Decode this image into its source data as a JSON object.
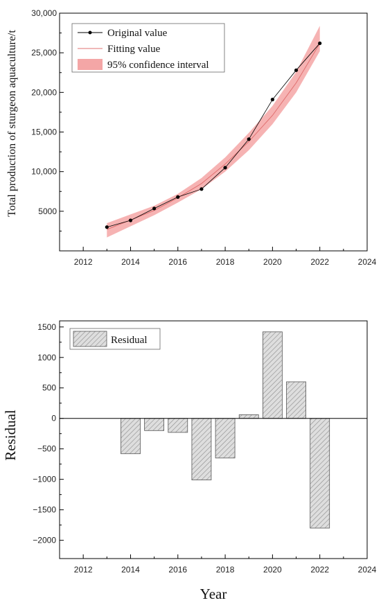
{
  "chart_data": [
    {
      "type": "line",
      "ylabel": "Total production of sturgeon aquaculture/t",
      "xlim": [
        2011,
        2024
      ],
      "ylim": [
        0,
        30000
      ],
      "x_ticks": [
        "2012",
        "2014",
        "2016",
        "2018",
        "2020",
        "2022",
        "2024"
      ],
      "y_ticks": [
        "5000",
        "10,000",
        "15,000",
        "20,000",
        "25,000",
        "30,000"
      ],
      "legend_position": "top-left",
      "series": [
        {
          "name": "Original value",
          "x": [
            2013,
            2014,
            2015,
            2016,
            2017,
            2018,
            2019,
            2020,
            2021,
            2022
          ],
          "values": [
            3000,
            3850,
            5350,
            6800,
            7800,
            10500,
            14100,
            19100,
            22800,
            26200
          ]
        },
        {
          "name": "Fitting value",
          "x": [
            2013,
            2014,
            2015,
            2016,
            2017,
            2018,
            2019,
            2020,
            2021,
            2022
          ],
          "values": [
            2700,
            3900,
            5100,
            6700,
            8500,
            10950,
            13800,
            17100,
            21200,
            26200
          ]
        },
        {
          "name": "95% confidence interval",
          "x": [
            2013,
            2014,
            2015,
            2016,
            2017,
            2018,
            2019,
            2020,
            2021,
            2022
          ],
          "lower": [
            1700,
            3100,
            4500,
            6100,
            7800,
            10000,
            12700,
            16000,
            20000,
            25200
          ],
          "upper": [
            3500,
            4600,
            5700,
            7200,
            9200,
            11800,
            14900,
            18300,
            22600,
            28400
          ]
        }
      ],
      "colors": {
        "original": "#000000",
        "fitting": "#e07070",
        "band": "#f4a6a6"
      }
    },
    {
      "type": "bar",
      "xlabel": "Year",
      "ylabel": "Residual",
      "xlim": [
        2011,
        2024
      ],
      "ylim": [
        -2300,
        1600
      ],
      "x_ticks": [
        "2012",
        "2014",
        "2016",
        "2018",
        "2020",
        "2022",
        "2024"
      ],
      "y_ticks": [
        "−2000",
        "−1500",
        "−1000",
        "−500",
        "0",
        "500",
        "1000",
        "1500"
      ],
      "legend_position": "top-left",
      "series": [
        {
          "name": "Residual",
          "x": [
            2014,
            2015,
            2016,
            2017,
            2018,
            2019,
            2020,
            2021,
            2022
          ],
          "values": [
            -580,
            -200,
            -230,
            -1010,
            -650,
            60,
            1420,
            600,
            -1800
          ]
        }
      ],
      "colors": {
        "bar_fill": "#d9d9d9",
        "bar_hatch": "#8c8c8c"
      }
    }
  ]
}
